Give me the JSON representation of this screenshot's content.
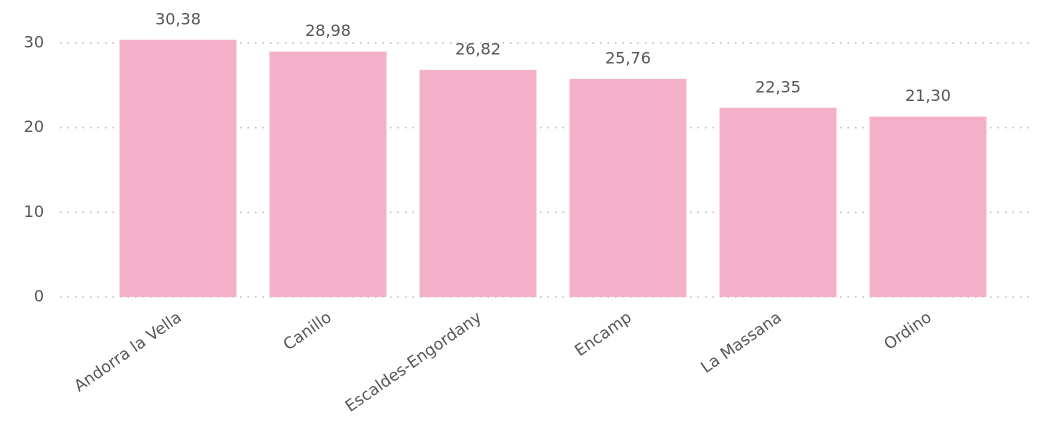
{
  "chart_data": {
    "type": "bar",
    "categories": [
      "Andorra la Vella",
      "Canillo",
      "Escaldes-Engordany",
      "Encamp",
      "La Massana",
      "Ordino"
    ],
    "values": [
      30.38,
      28.98,
      26.82,
      25.76,
      22.35,
      21.3
    ],
    "value_labels": [
      "30,38",
      "28,98",
      "26,82",
      "25,76",
      "22,35",
      "21,30"
    ],
    "color": "#f4b0c8",
    "ylim": [
      0,
      30
    ],
    "yticks": [
      0,
      10,
      20,
      30
    ],
    "grid": true
  }
}
